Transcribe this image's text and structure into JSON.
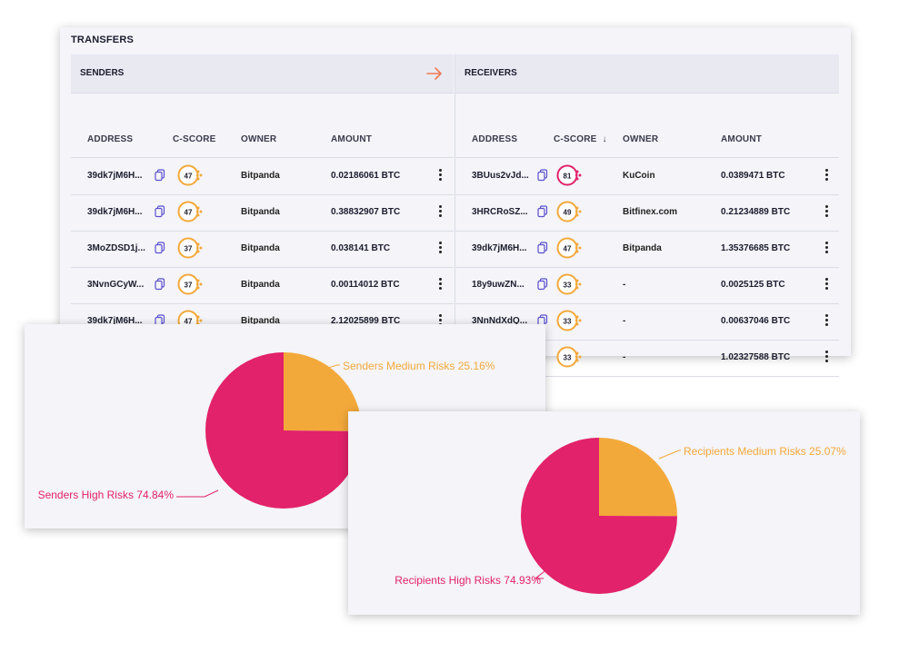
{
  "transfers": {
    "title": "TRANSFERS",
    "senders": {
      "header": "SENDERS",
      "columns": [
        "ADDRESS",
        "C-SCORE",
        "OWNER",
        "AMOUNT"
      ],
      "rows": [
        {
          "address": "39dk7jM6H...",
          "score": "47",
          "owner": "Bitpanda",
          "amount": "0.02186061 BTC"
        },
        {
          "address": "39dk7jM6H...",
          "score": "47",
          "owner": "Bitpanda",
          "amount": "0.38832907 BTC"
        },
        {
          "address": "3MoZDSD1j...",
          "score": "37",
          "owner": "Bitpanda",
          "amount": "0.038141 BTC"
        },
        {
          "address": "3NvnGCyW...",
          "score": "37",
          "owner": "Bitpanda",
          "amount": "0.00114012 BTC"
        },
        {
          "address": "39dk7jM6H...",
          "score": "47",
          "owner": "Bitpanda",
          "amount": "2.12025899 BTC"
        }
      ]
    },
    "receivers": {
      "header": "RECEIVERS",
      "columns": [
        "ADDRESS",
        "C-SCORE",
        "OWNER",
        "AMOUNT"
      ],
      "sort_indicator": "↓",
      "rows": [
        {
          "address": "3BUus2vJd...",
          "score": "81",
          "owner": "KuCoin",
          "amount": "0.0389471 BTC",
          "risk": "high"
        },
        {
          "address": "3HRCRoSZ...",
          "score": "49",
          "owner": "Bitfinex.com",
          "amount": "0.21234889 BTC",
          "risk": "medium"
        },
        {
          "address": "39dk7jM6H...",
          "score": "47",
          "owner": "Bitpanda",
          "amount": "1.35376685 BTC",
          "risk": "medium"
        },
        {
          "address": "18y9uwZN...",
          "score": "33",
          "owner": "-",
          "amount": "0.0025125 BTC",
          "risk": "medium"
        },
        {
          "address": "3NnNdXdQ...",
          "score": "33",
          "owner": "-",
          "amount": "0.00637046 BTC",
          "risk": "medium"
        },
        {
          "address": "",
          "score": "33",
          "owner": "-",
          "amount": "1.02327588 BTC",
          "risk": "medium"
        }
      ]
    }
  },
  "colors": {
    "high_risk": "#e2226a",
    "medium_risk": "#f3a93a",
    "accent_arrow": "#f07a55",
    "copy_icon": "#5b4fcf"
  },
  "icons": {
    "arrow": "arrow-right-icon",
    "copy": "copy-icon",
    "menu": "kebab-menu-icon"
  },
  "chart_data": [
    {
      "type": "pie",
      "labels": [
        "Senders Medium Risks 25.16%",
        "Senders High Risks 74.84%"
      ],
      "values": [
        25.16,
        74.84
      ],
      "colors": [
        "#f3a93a",
        "#e2226a"
      ]
    },
    {
      "type": "pie",
      "labels": [
        "Recipients Medium Risks 25.07%",
        "Recipients High Risks 74.93%"
      ],
      "values": [
        25.07,
        74.93
      ],
      "colors": [
        "#f3a93a",
        "#e2226a"
      ]
    }
  ]
}
